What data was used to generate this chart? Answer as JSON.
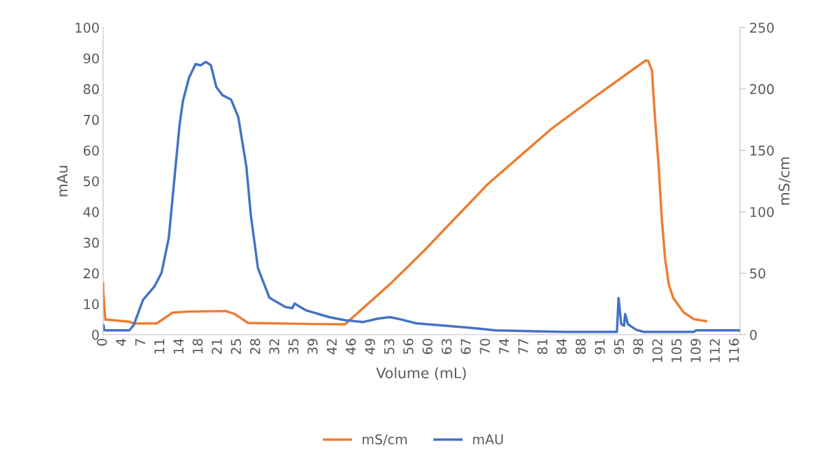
{
  "chart_data": {
    "type": "line",
    "xlabel": "Volume (mL)",
    "ylabel": "mAu",
    "y2label": "mS/cm",
    "xlim": [
      0,
      116.4
    ],
    "xticks": [
      {
        "value": 0,
        "label": "0"
      },
      {
        "value": 3.5,
        "label": "4"
      },
      {
        "value": 7,
        "label": "7"
      },
      {
        "value": 10.5,
        "label": "11"
      },
      {
        "value": 14,
        "label": "14"
      },
      {
        "value": 17.5,
        "label": "18"
      },
      {
        "value": 21,
        "label": "21"
      },
      {
        "value": 24.5,
        "label": "25"
      },
      {
        "value": 28,
        "label": "28"
      },
      {
        "value": 31.5,
        "label": "32"
      },
      {
        "value": 35,
        "label": "35"
      },
      {
        "value": 38.5,
        "label": "39"
      },
      {
        "value": 42,
        "label": "42"
      },
      {
        "value": 45.5,
        "label": "46"
      },
      {
        "value": 49,
        "label": "49"
      },
      {
        "value": 52.5,
        "label": "53"
      },
      {
        "value": 56,
        "label": "56"
      },
      {
        "value": 59.5,
        "label": "60"
      },
      {
        "value": 63,
        "label": "63"
      },
      {
        "value": 66.5,
        "label": "67"
      },
      {
        "value": 70,
        "label": "70"
      },
      {
        "value": 73.5,
        "label": "74"
      },
      {
        "value": 77,
        "label": "77"
      },
      {
        "value": 80.5,
        "label": "81"
      },
      {
        "value": 84,
        "label": "84"
      },
      {
        "value": 87.5,
        "label": "88"
      },
      {
        "value": 91,
        "label": "91"
      },
      {
        "value": 94.5,
        "label": "95"
      },
      {
        "value": 98,
        "label": "98"
      },
      {
        "value": 101.5,
        "label": "102"
      },
      {
        "value": 105,
        "label": "105"
      },
      {
        "value": 108.5,
        "label": "109"
      },
      {
        "value": 112,
        "label": "112"
      },
      {
        "value": 115.5,
        "label": "116"
      }
    ],
    "ylim": [
      0,
      100
    ],
    "yticks": [
      0,
      10,
      20,
      30,
      40,
      50,
      60,
      70,
      80,
      90,
      100
    ],
    "y2lim": [
      0,
      250
    ],
    "y2ticks": [
      0,
      50,
      100,
      150,
      200,
      250
    ],
    "grid": false,
    "legend": "bottom",
    "marker": "none",
    "line_style": "solid",
    "series": [
      {
        "name": "mS/cm",
        "color": "#ed7d31",
        "axis": "y2",
        "x": [
          0,
          0.05,
          0.4,
          4.8,
          5.6,
          9.8,
          12.7,
          15.7,
          22.4,
          24,
          26.5,
          39.1,
          44.2,
          52.8,
          58.7,
          70.3,
          81.9,
          89.7,
          99.1,
          99.6,
          100.3,
          100.8,
          101.5,
          102.1,
          102.7,
          103.4,
          104.2,
          106.1,
          108,
          110.2
        ],
        "values": [
          42,
          33.7,
          12.3,
          10.5,
          9.1,
          9.1,
          17.9,
          18.8,
          19.2,
          16.9,
          9.5,
          8.6,
          8.4,
          42.6,
          68.5,
          122.5,
          167.4,
          193,
          223,
          223,
          215,
          180,
          139,
          94.5,
          62,
          40.5,
          29.8,
          18,
          12.5,
          11
        ]
      },
      {
        "name": "mAU",
        "color": "#4472c4",
        "x": [
          0,
          0.1,
          0.2,
          4.8,
          5.6,
          7.3,
          9.4,
          10.7,
          12,
          13,
          14,
          14.6,
          15.7,
          16.9,
          17.8,
          18.8,
          19.7,
          20.7,
          21.8,
          23.4,
          24.7,
          26.2,
          27,
          28.3,
          30.4,
          33.3,
          34.6,
          35,
          37.1,
          41.3,
          44.2,
          47.5,
          50.2,
          52.4,
          54.3,
          57.2,
          62.5,
          67.4,
          71.7,
          84.5,
          93.9,
          94.2,
          94.7,
          95.2,
          95.4,
          95.9,
          97.4,
          98.8,
          108,
          108.3,
          116.4
        ],
        "values": [
          1.6,
          3.1,
          1.4,
          1.4,
          3.1,
          11.3,
          15.7,
          20.2,
          31.4,
          50.1,
          68.7,
          76.1,
          83.6,
          88.1,
          87.7,
          88.8,
          87.7,
          80.6,
          78,
          76.5,
          70.9,
          54.5,
          38.9,
          21.7,
          12,
          9,
          8.6,
          10.1,
          7.9,
          5.7,
          4.7,
          4.1,
          5.2,
          5.7,
          5,
          3.7,
          2.9,
          2.2,
          1.4,
          0.9,
          0.9,
          11.9,
          3.4,
          2.9,
          6.7,
          3.4,
          1.6,
          0.9,
          0.9,
          1.4,
          1.4
        ]
      }
    ]
  }
}
